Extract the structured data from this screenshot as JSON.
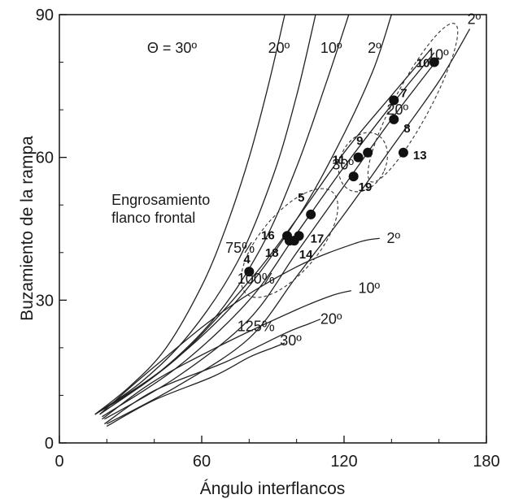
{
  "chart_data": {
    "type": "line",
    "title": "",
    "xlabel": "Ángulo interflancos",
    "ylabel": "Buzamiento de la rampa",
    "xlim": [
      0,
      180
    ],
    "ylim": [
      0,
      90
    ],
    "xticks": [
      "0",
      "60",
      "120",
      "180"
    ],
    "yticks": [
      "0",
      "30",
      "60",
      "90"
    ],
    "grid": false,
    "theta_label": "Θ = 30º",
    "theta_family": [
      {
        "name": "30º",
        "x": [
          15,
          30,
          45,
          60,
          70,
          80,
          88,
          95
        ],
        "y": [
          6,
          12,
          20,
          33,
          45,
          60,
          75,
          90
        ]
      },
      {
        "name": "20º",
        "x": [
          15,
          35,
          55,
          75,
          90,
          100,
          108
        ],
        "y": [
          6,
          13,
          23,
          38,
          56,
          73,
          90
        ]
      },
      {
        "name": "10º",
        "x": [
          15,
          40,
          65,
          85,
          100,
          112,
          122
        ],
        "y": [
          6,
          14,
          26,
          41,
          58,
          75,
          90
        ]
      },
      {
        "name": "2º",
        "x": [
          15,
          45,
          75,
          100,
          118,
          132,
          140
        ],
        "y": [
          6,
          16,
          30,
          47,
          63,
          78,
          90
        ]
      }
    ],
    "thickening_family": [
      {
        "name": "30º",
        "x": [
          20,
          50,
          80,
          100,
          120,
          140,
          160,
          173
        ],
        "y": [
          4,
          12,
          22,
          35,
          48,
          62,
          76,
          87
        ]
      },
      {
        "name": "20º",
        "x": [
          19,
          50,
          80,
          100,
          120,
          140,
          160
        ],
        "y": [
          5,
          14,
          26,
          40,
          54,
          68,
          81
        ]
      },
      {
        "name": "10º",
        "x": [
          18,
          50,
          80,
          100,
          120,
          140,
          158
        ],
        "y": [
          5.5,
          16,
          30,
          44,
          58,
          71,
          82
        ]
      },
      {
        "name": "2º",
        "x": [
          17,
          50,
          80,
          100,
          120,
          140,
          157
        ],
        "y": [
          6,
          18,
          34,
          47,
          61,
          73,
          83
        ]
      }
    ],
    "lower_family": [
      {
        "name": "2º",
        "x": [
          17,
          40,
          70,
          100,
          125,
          135
        ],
        "y": [
          6,
          16,
          28,
          37,
          42,
          43
        ]
      },
      {
        "name": "10º",
        "x": [
          18,
          40,
          70,
          100,
          115,
          123
        ],
        "y": [
          5,
          13,
          21,
          28,
          31,
          32
        ]
      },
      {
        "name": "20º",
        "x": [
          19,
          40,
          70,
          95,
          105,
          110
        ],
        "y": [
          4,
          11,
          17,
          23,
          25,
          26
        ]
      },
      {
        "name": "30º",
        "x": [
          20,
          40,
          65,
          80,
          90,
          95
        ],
        "y": [
          3.5,
          9,
          14,
          18,
          20,
          21
        ]
      }
    ],
    "curve_labels": [
      {
        "text": "2º",
        "x": 172,
        "y": 88
      },
      {
        "text": "10º",
        "x": 155,
        "y": 80.5
      },
      {
        "text": "20º",
        "x": 138,
        "y": 69
      },
      {
        "text": "30º",
        "x": 115,
        "y": 57.5
      },
      {
        "text": "20º",
        "x": 88,
        "y": 82
      },
      {
        "text": "10º",
        "x": 110,
        "y": 82
      },
      {
        "text": "2º",
        "x": 130,
        "y": 82
      },
      {
        "text": "2º",
        "x": 138,
        "y": 42
      },
      {
        "text": "10º",
        "x": 126,
        "y": 31.5
      },
      {
        "text": "20º",
        "x": 110,
        "y": 25
      },
      {
        "text": "30º",
        "x": 93,
        "y": 20.5
      },
      {
        "text": "75%",
        "x": 70,
        "y": 40
      },
      {
        "text": "100%",
        "x": 75,
        "y": 33.5
      },
      {
        "text": "125%",
        "x": 75,
        "y": 23.5
      }
    ],
    "annotation": [
      "Engrosamiento",
      "flanco frontal"
    ],
    "points": [
      {
        "label": "10",
        "x": 158,
        "y": 80
      },
      {
        "label": "7",
        "x": 141,
        "y": 72
      },
      {
        "label": "8",
        "x": 141,
        "y": 68
      },
      {
        "label": "9",
        "x": 130,
        "y": 61
      },
      {
        "label": "11",
        "x": 126,
        "y": 60
      },
      {
        "label": "19",
        "x": 124,
        "y": 56
      },
      {
        "label": "13",
        "x": 145,
        "y": 61
      },
      {
        "label": "5",
        "x": 106,
        "y": 48
      },
      {
        "label": "16",
        "x": 96,
        "y": 43.5
      },
      {
        "label": "18",
        "x": 97,
        "y": 42.5
      },
      {
        "label": "14",
        "x": 99,
        "y": 42.5
      },
      {
        "label": "17",
        "x": 101,
        "y": 43.5
      },
      {
        "label": "4",
        "x": 80,
        "y": 36
      }
    ]
  }
}
